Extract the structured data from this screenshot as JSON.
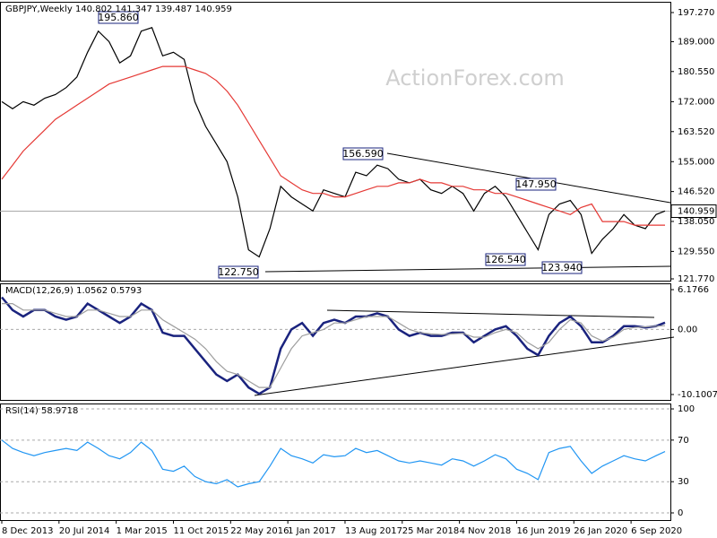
{
  "chart_data": [
    {
      "type": "line",
      "title": "GBPJPY,Weekly  140.802 141.347 139.487 140.959",
      "watermark": "ActionForex.com",
      "x": [
        0,
        6,
        12,
        18,
        24,
        30,
        36,
        42,
        48,
        54,
        60,
        66,
        72,
        78,
        84,
        90,
        96,
        102,
        108,
        114,
        120,
        126,
        132,
        138,
        144,
        150,
        156,
        162,
        168,
        174,
        180,
        186,
        192,
        198,
        204,
        210,
        216,
        222,
        228,
        234,
        240,
        246,
        252,
        258,
        264,
        270,
        276,
        282,
        288,
        294,
        300,
        306,
        312,
        318,
        324,
        330,
        336,
        342,
        348,
        354,
        360,
        366,
        371
      ],
      "xlim": [
        -1,
        373
      ],
      "ylim": [
        121.26,
        200.32
      ],
      "yticks": [
        {
          "value": 197.27,
          "label": "197.270"
        },
        {
          "value": 189,
          "label": "189.000"
        },
        {
          "value": 180.55,
          "label": "180.550"
        },
        {
          "value": 172,
          "label": "172.000"
        },
        {
          "value": 163.52,
          "label": "163.520"
        },
        {
          "value": 155,
          "label": "155.000"
        },
        {
          "value": 146.52,
          "label": "146.520"
        },
        {
          "value": 138.05,
          "label": "138.050"
        },
        {
          "value": 129.55,
          "label": "129.550"
        },
        {
          "value": 121.77,
          "label": "121.770"
        }
      ],
      "last_price": 140.959,
      "annotations": [
        "195.860",
        "156.590",
        "147.950",
        "126.540",
        "122.750",
        "123.940"
      ],
      "series": [
        {
          "color": "#000000",
          "values": [
            172,
            170,
            172,
            171,
            173,
            174,
            176,
            179,
            186,
            192,
            189,
            183,
            185,
            192,
            193,
            185,
            186,
            184,
            172,
            165,
            160,
            155,
            145,
            130,
            128,
            136,
            148,
            145,
            143,
            141,
            147,
            146,
            145,
            152,
            151,
            154,
            153,
            150,
            149,
            150,
            147,
            146,
            148,
            146,
            141,
            146,
            148,
            145,
            140,
            135,
            130,
            140,
            143,
            144,
            140,
            129,
            133,
            136,
            140,
            137,
            136,
            140,
            141
          ]
        },
        {
          "color": "#e53935",
          "values": [
            150,
            154,
            158,
            161,
            164,
            167,
            169,
            171,
            173,
            175,
            177,
            178,
            179,
            180,
            181,
            182,
            182,
            182,
            181,
            180,
            178,
            175,
            171,
            166,
            161,
            156,
            151,
            149,
            147,
            146,
            146,
            145,
            145,
            146,
            147,
            148,
            148,
            149,
            149,
            150,
            149,
            149,
            148,
            148,
            147,
            147,
            146,
            146,
            145,
            144,
            143,
            142,
            141,
            140,
            142,
            143,
            138,
            138,
            138,
            137,
            137,
            137,
            137
          ]
        }
      ]
    },
    {
      "type": "line",
      "title": "MACD(12,26,9) 1.0562 0.5793",
      "x": [
        0,
        6,
        12,
        18,
        24,
        30,
        36,
        42,
        48,
        54,
        60,
        66,
        72,
        78,
        84,
        90,
        96,
        102,
        108,
        114,
        120,
        126,
        132,
        138,
        144,
        150,
        156,
        162,
        168,
        174,
        180,
        186,
        192,
        198,
        204,
        210,
        216,
        222,
        228,
        234,
        240,
        246,
        252,
        258,
        264,
        270,
        276,
        282,
        288,
        294,
        300,
        306,
        312,
        318,
        324,
        330,
        336,
        342,
        348,
        354,
        360,
        366,
        371
      ],
      "xlim": [
        -1,
        373
      ],
      "ylim": [
        -10.94,
        7.15
      ],
      "yticks": [
        6.1766,
        {
          "value": 0,
          "label": "0.00"
        },
        -10.1007
      ],
      "series": [
        {
          "color": "#1a237e",
          "values": [
            5,
            3,
            2,
            3,
            3,
            2,
            1.5,
            2,
            4,
            3,
            2,
            1,
            2,
            4,
            3,
            -0.5,
            -1,
            -1,
            -3,
            -5,
            -7,
            -8,
            -7,
            -9,
            -10,
            -9,
            -3,
            0,
            1,
            -1,
            1,
            1.5,
            1,
            2,
            2,
            2.5,
            2,
            0,
            -1,
            -0.5,
            -1,
            -1,
            -0.5,
            -0.5,
            -2,
            -1,
            0,
            0.5,
            -1,
            -3,
            -4,
            -1,
            1,
            2,
            0.5,
            -2,
            -2,
            -1,
            0.5,
            0.5,
            0.3,
            0.5,
            1.0562
          ]
        },
        {
          "color": "#9e9e9e",
          "values": [
            4,
            4,
            3,
            3,
            3,
            2.5,
            2,
            2,
            3,
            3,
            2.5,
            2,
            2,
            3,
            3,
            1.5,
            0.5,
            -0.5,
            -1.5,
            -3,
            -5,
            -6.5,
            -7,
            -8,
            -9,
            -9,
            -6,
            -3,
            -1,
            -0.5,
            0,
            1,
            1,
            1.5,
            2,
            2,
            2,
            1,
            0,
            -0.5,
            -0.7,
            -0.8,
            -0.7,
            -0.6,
            -1.2,
            -1.2,
            -0.5,
            0,
            -0.5,
            -2,
            -3,
            -2,
            0,
            1.5,
            1,
            -1,
            -1.8,
            -1.2,
            0,
            0.3,
            0.4,
            0.5,
            0.5793
          ]
        }
      ]
    },
    {
      "type": "line",
      "title": "RSI(14) 58.9718",
      "x": [
        0,
        6,
        12,
        18,
        24,
        30,
        36,
        42,
        48,
        54,
        60,
        66,
        72,
        78,
        84,
        90,
        96,
        102,
        108,
        114,
        120,
        126,
        132,
        138,
        144,
        150,
        156,
        162,
        168,
        174,
        180,
        186,
        192,
        198,
        204,
        210,
        216,
        222,
        228,
        234,
        240,
        246,
        252,
        258,
        264,
        270,
        276,
        282,
        288,
        294,
        300,
        306,
        312,
        318,
        324,
        330,
        336,
        342,
        348,
        354,
        360,
        366,
        371
      ],
      "xlim": [
        -1,
        373
      ],
      "ylim": [
        -6.9,
        105.2
      ],
      "yticks": [
        100,
        70,
        30,
        0
      ],
      "xticks": [
        {
          "value": 0,
          "label": "8 Dec 2013"
        },
        {
          "value": 32,
          "label": "20 Jul 2014"
        },
        {
          "value": 64,
          "label": "1 Mar 2015"
        },
        {
          "value": 96,
          "label": "11 Oct 2015"
        },
        {
          "value": 128,
          "label": "22 May 2016"
        },
        {
          "value": 160,
          "label": "1 Jan 2017"
        },
        {
          "value": 192,
          "label": "13 Aug 2017"
        },
        {
          "value": 224,
          "label": "25 Mar 2018"
        },
        {
          "value": 256,
          "label": "4 Nov 2018"
        },
        {
          "value": 288,
          "label": "16 Jun 2019"
        },
        {
          "value": 320,
          "label": "26 Jan 2020"
        },
        {
          "value": 352,
          "label": "6 Sep 2020"
        }
      ],
      "series": [
        {
          "color": "#2196f3",
          "values": [
            70,
            62,
            58,
            55,
            58,
            60,
            62,
            60,
            68,
            62,
            55,
            52,
            58,
            68,
            60,
            42,
            40,
            45,
            35,
            30,
            28,
            32,
            25,
            28,
            30,
            45,
            62,
            55,
            52,
            48,
            56,
            54,
            55,
            62,
            58,
            60,
            55,
            50,
            48,
            50,
            48,
            46,
            52,
            50,
            45,
            50,
            56,
            52,
            42,
            38,
            32,
            58,
            62,
            64,
            50,
            38,
            45,
            50,
            55,
            52,
            50,
            55,
            58.9718
          ]
        }
      ]
    }
  ]
}
